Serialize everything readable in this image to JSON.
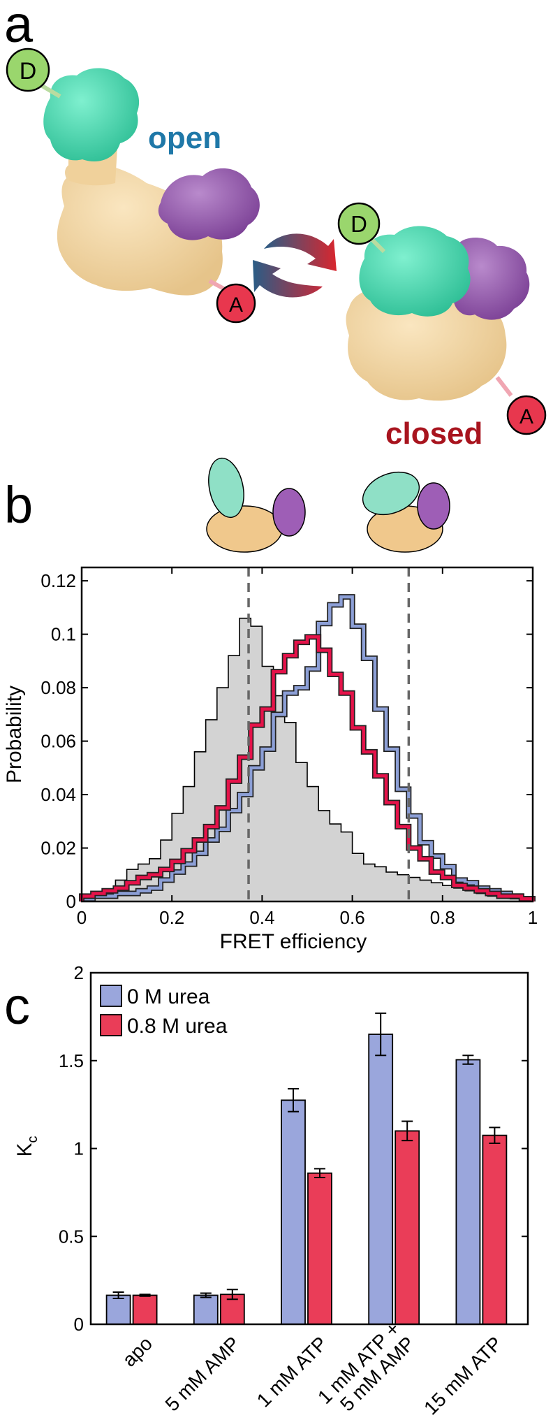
{
  "panels": {
    "a": {
      "letter": "a",
      "open_label": "open",
      "closed_label": "closed",
      "donor": "D",
      "acceptor": "A",
      "colors": {
        "cyan_domain": "#46d9b0",
        "purple_domain": "#9a5eb0",
        "tan_core": "#f3d7a2",
        "open_text": "#1f78a8",
        "closed_text": "#a8141e",
        "donor_fill": "#9ad66d",
        "acceptor_fill": "#e8374e"
      }
    },
    "b": {
      "letter": "b"
    },
    "c": {
      "letter": "c"
    }
  },
  "chart_data": [
    {
      "type": "step",
      "panel": "b",
      "xlabel": "FRET efficiency",
      "ylabel": "Probability",
      "xlim": [
        0,
        1
      ],
      "ylim": [
        0,
        0.125
      ],
      "xticks": [
        0,
        0.2,
        0.4,
        0.6,
        0.8,
        1
      ],
      "xtick_labels": [
        "0",
        "0.2",
        "0.4",
        "0.6",
        "0.8",
        "1"
      ],
      "yticks": [
        0,
        0.02,
        0.04,
        0.06,
        0.08,
        0.1,
        0.12
      ],
      "ytick_labels": [
        "0",
        "0.02",
        "0.04",
        "0.06",
        "0.08",
        "0.1",
        "0.12"
      ],
      "dashed_lines": [
        0.37,
        0.725
      ],
      "bin_width": 0.025,
      "bin_start": 0,
      "series": [
        {
          "key": "gray",
          "color": "#000000",
          "fill": "#d3d3d3",
          "values": [
            0.002,
            0.003,
            0.004,
            0.008,
            0.012,
            0.014,
            0.016,
            0.023,
            0.033,
            0.043,
            0.056,
            0.068,
            0.08,
            0.092,
            0.106,
            0.103,
            0.088,
            0.077,
            0.067,
            0.052,
            0.043,
            0.034,
            0.029,
            0.026,
            0.018,
            0.014,
            0.013,
            0.011,
            0.01,
            0.009,
            0.008,
            0.007,
            0.006,
            0.005,
            0.004,
            0.003,
            0.002,
            0.002,
            0.001,
            0.001
          ]
        },
        {
          "key": "blue",
          "color": "#8c9fd6",
          "values": [
            0.001,
            0.002,
            0.002,
            0.003,
            0.003,
            0.004,
            0.005,
            0.008,
            0.011,
            0.014,
            0.018,
            0.023,
            0.027,
            0.034,
            0.04,
            0.05,
            0.057,
            0.07,
            0.078,
            0.08,
            0.087,
            0.104,
            0.111,
            0.114,
            0.103,
            0.091,
            0.072,
            0.057,
            0.042,
            0.032,
            0.022,
            0.017,
            0.013,
            0.008,
            0.007,
            0.005,
            0.004,
            0.003,
            0.002,
            0.001
          ]
        },
        {
          "key": "red",
          "color": "#e5134a",
          "values": [
            0.002,
            0.003,
            0.004,
            0.005,
            0.007,
            0.009,
            0.01,
            0.012,
            0.015,
            0.019,
            0.023,
            0.028,
            0.035,
            0.045,
            0.054,
            0.066,
            0.072,
            0.086,
            0.092,
            0.097,
            0.099,
            0.094,
            0.085,
            0.078,
            0.065,
            0.056,
            0.047,
            0.037,
            0.028,
            0.02,
            0.016,
            0.011,
            0.009,
            0.006,
            0.005,
            0.004,
            0.003,
            0.002,
            0.002,
            0.001
          ]
        }
      ]
    },
    {
      "type": "bar",
      "panel": "c",
      "ylabel": "K",
      "ylabel_sub": "c",
      "ylim": [
        0,
        2
      ],
      "yticks": [
        0,
        0.5,
        1,
        1.5,
        2
      ],
      "ytick_labels": [
        "0",
        "0.5",
        "1",
        "1.5",
        "2"
      ],
      "categories": [
        "apo",
        "5 mM AMP",
        "1 mM ATP",
        "1 mM ATP +|5 mM AMP",
        "15 mM ATP"
      ],
      "legend_position": "top-left",
      "series": [
        {
          "name": "0 M urea",
          "color": "#9aa6dc",
          "values": [
            0.165,
            0.165,
            1.275,
            1.65,
            1.505
          ],
          "errors": [
            0.018,
            0.012,
            0.065,
            0.12,
            0.025
          ]
        },
        {
          "name": "0.8 M urea",
          "color": "#ea3d58",
          "values": [
            0.165,
            0.17,
            0.86,
            1.1,
            1.075
          ],
          "errors": [
            0.005,
            0.028,
            0.025,
            0.055,
            0.045
          ]
        }
      ]
    }
  ]
}
